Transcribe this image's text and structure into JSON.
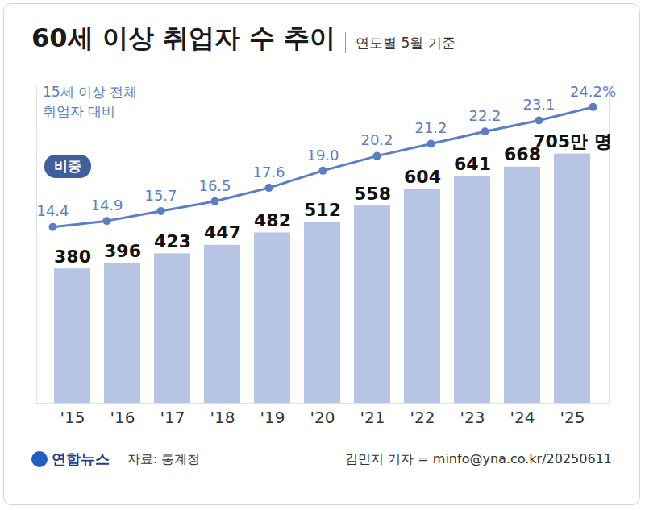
{
  "chart_data": {
    "type": "bar",
    "title": "60세 이상 취업자 수 추이",
    "subtitle": "연도별 5월 기준",
    "categories": [
      "'15",
      "'16",
      "'17",
      "'18",
      "'19",
      "'20",
      "'21",
      "'22",
      "'23",
      "'24",
      "'25"
    ],
    "series": [
      {
        "type": "bar",
        "color": "#b7c5e4",
        "values": [
          380,
          396,
          423,
          447,
          482,
          512,
          558,
          604,
          641,
          668,
          705
        ],
        "value_labels": [
          "380",
          "396",
          "423",
          "447",
          "482",
          "512",
          "558",
          "604",
          "641",
          "668",
          "705만 명"
        ],
        "data_labels": true
      },
      {
        "name": "비중",
        "type": "line",
        "axis": "y2",
        "color": "#5a7ec6",
        "marker": "circle",
        "values": [
          14.4,
          14.9,
          15.7,
          16.5,
          17.6,
          19.0,
          20.2,
          21.2,
          22.2,
          23.1,
          24.2
        ],
        "value_labels": [
          "14.4",
          "14.9",
          "15.7",
          "16.5",
          "17.6",
          "19.0",
          "20.2",
          "21.2",
          "22.2",
          "23.1",
          "24.2%"
        ],
        "data_labels": true
      }
    ],
    "ylim": [
      0,
      900
    ],
    "y2lim": [
      0,
      26
    ],
    "grid": false,
    "tick_labels": "x",
    "annotations": [
      "15세 이상 전체\n취업자 대비"
    ],
    "logo": "연합뉴스",
    "source": "자료: 통계청",
    "credit": "김민지 기자 = minfo@yna.co.kr/20250611"
  }
}
